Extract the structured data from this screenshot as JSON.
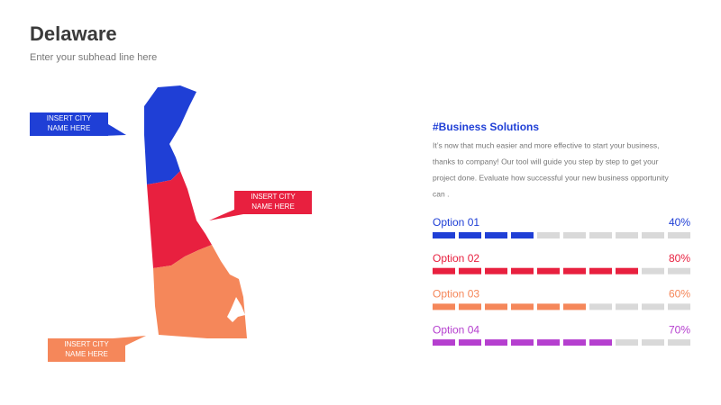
{
  "header": {
    "title": "Delaware",
    "subtitle": "Enter your subhead line here"
  },
  "callouts": [
    {
      "lines": [
        "INSERT CITY",
        "NAME HERE"
      ],
      "color": "#1f3fd6"
    },
    {
      "lines": [
        "INSERT CITY",
        "NAME HERE"
      ],
      "color": "#e8203f"
    },
    {
      "lines": [
        "INSERT CITY",
        "NAME HERE"
      ],
      "color": "#f5875a"
    }
  ],
  "section": {
    "heading": "#Business Solutions",
    "body": [
      "It’s now that much easier and more effective to start your business,",
      "thanks to company! Our tool will guide you step by step to get your",
      "project done. Evaluate how successful your new business opportunity",
      "can ."
    ]
  },
  "options": [
    {
      "label": "Option 01",
      "value": 40,
      "value_label": "40%",
      "color": "#1f3fd6"
    },
    {
      "label": "Option 02",
      "value": 80,
      "value_label": "80%",
      "color": "#e8203f"
    },
    {
      "label": "Option 03",
      "value": 60,
      "value_label": "60%",
      "color": "#f5875a"
    },
    {
      "label": "Option 04",
      "value": 70,
      "value_label": "70%",
      "color": "#b53fcf"
    }
  ]
}
